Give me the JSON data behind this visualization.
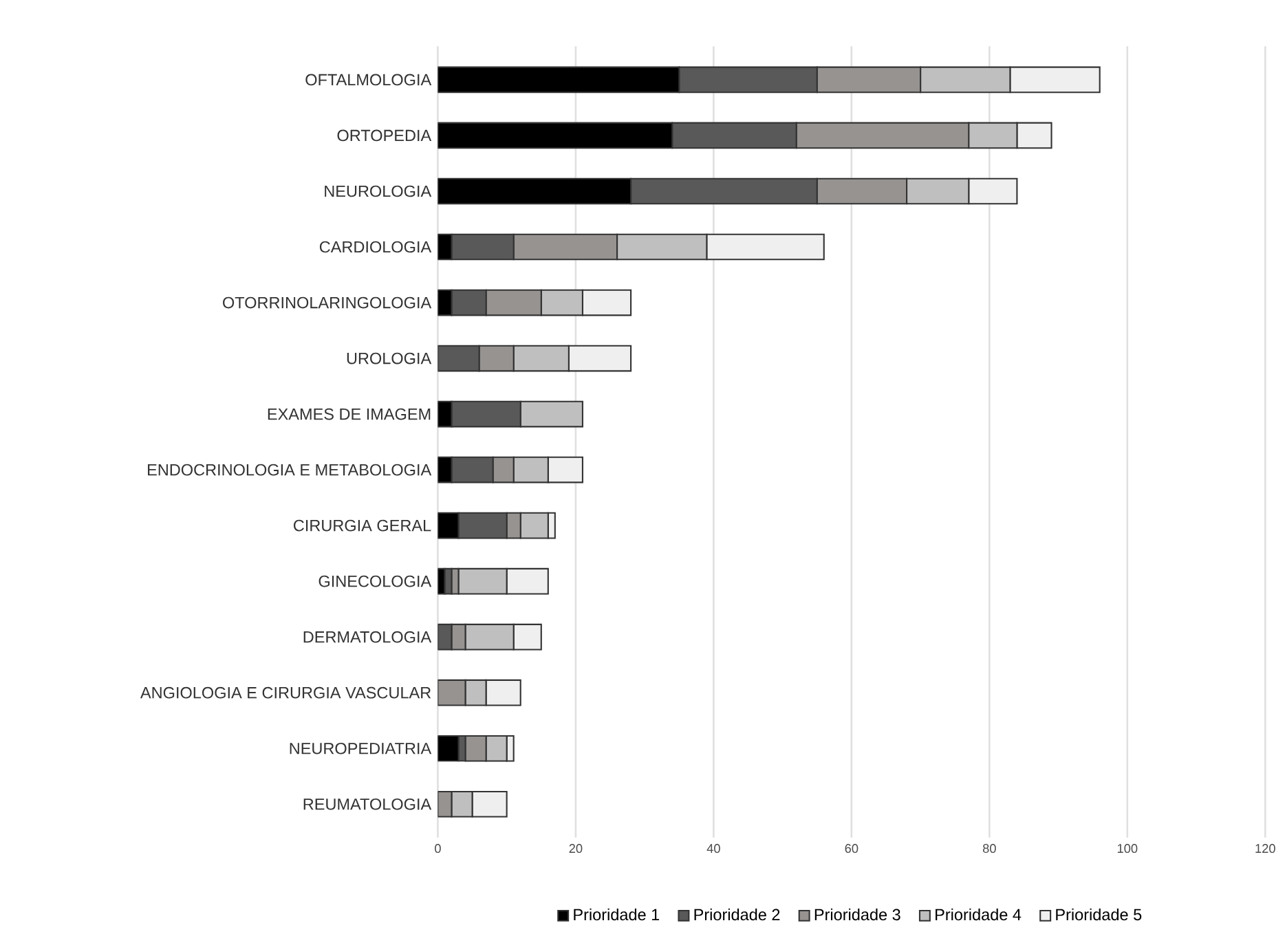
{
  "chart_data": {
    "type": "bar",
    "orientation": "horizontal",
    "stacked": true,
    "categories": [
      "OFTALMOLOGIA",
      "ORTOPEDIA",
      "NEUROLOGIA",
      "CARDIOLOGIA",
      "OTORRINOLARINGOLOGIA",
      "UROLOGIA",
      "EXAMES DE IMAGEM",
      "ENDOCRINOLOGIA E METABOLOGIA",
      "CIRURGIA GERAL",
      "GINECOLOGIA",
      "DERMATOLOGIA",
      "ANGIOLOGIA E CIRURGIA VASCULAR",
      "NEUROPEDIATRIA",
      "REUMATOLOGIA"
    ],
    "series": [
      {
        "name": "Prioridade 1",
        "color": "#000000",
        "values": [
          35,
          34,
          28,
          2,
          2,
          0,
          2,
          2,
          3,
          1,
          0,
          0,
          3,
          0
        ]
      },
      {
        "name": "Prioridade 2",
        "color": "#595959",
        "values": [
          20,
          18,
          27,
          9,
          5,
          6,
          10,
          6,
          7,
          1,
          2,
          0,
          1,
          0
        ]
      },
      {
        "name": "Prioridade 3",
        "color": "#969391",
        "values": [
          15,
          25,
          13,
          15,
          8,
          5,
          0,
          3,
          2,
          1,
          2,
          4,
          3,
          2
        ]
      },
      {
        "name": "Prioridade 4",
        "color": "#bfbfbf",
        "values": [
          13,
          7,
          9,
          13,
          6,
          8,
          9,
          5,
          4,
          7,
          7,
          3,
          3,
          3
        ]
      },
      {
        "name": "Prioridade 5",
        "color": "#efefef",
        "values": [
          13,
          5,
          7,
          17,
          7,
          9,
          0,
          5,
          1,
          6,
          4,
          5,
          1,
          5
        ]
      }
    ],
    "xlim": [
      0,
      120
    ],
    "xticks": [
      0,
      20,
      40,
      60,
      80,
      100,
      120
    ],
    "grid": "x",
    "legend": "bottom"
  }
}
